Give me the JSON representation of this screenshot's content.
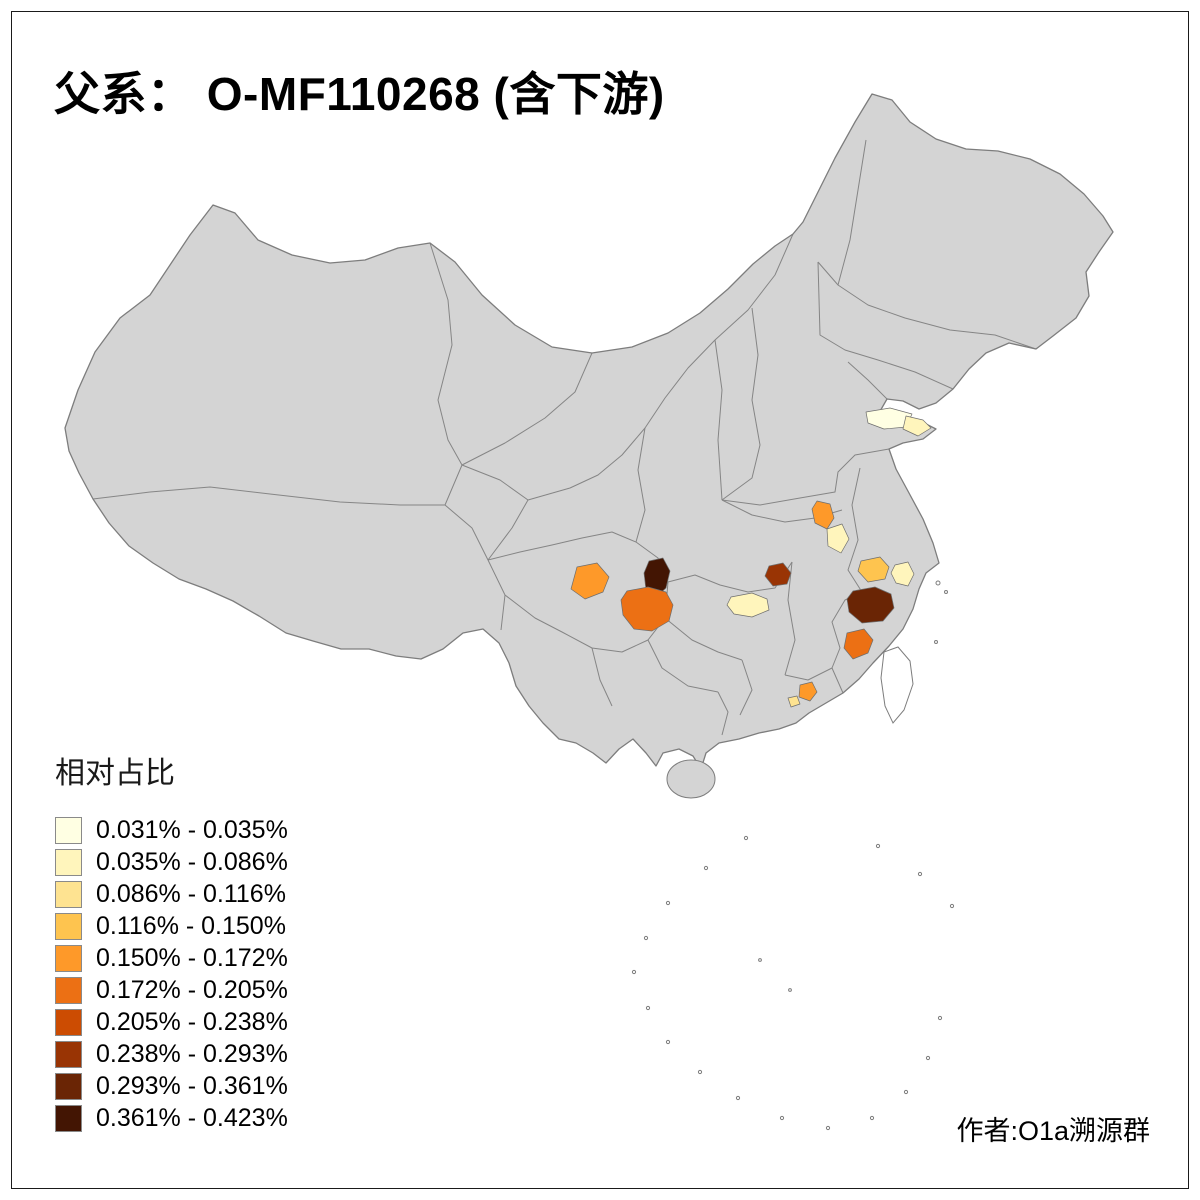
{
  "title": "父系： O-MF110268 (含下游)",
  "attribution": "作者:O1a溯源群",
  "legend": {
    "title": "相对占比",
    "items": [
      {
        "range": "0.031% - 0.035%",
        "color": "#FFFFE3"
      },
      {
        "range": "0.035% - 0.086%",
        "color": "#FFF5BC"
      },
      {
        "range": "0.086% - 0.116%",
        "color": "#FEE391"
      },
      {
        "range": "0.116% - 0.150%",
        "color": "#FEC44F"
      },
      {
        "range": "0.150% - 0.172%",
        "color": "#FE9929"
      },
      {
        "range": "0.172% - 0.205%",
        "color": "#EC7014"
      },
      {
        "range": "0.205% - 0.238%",
        "color": "#CC4C02"
      },
      {
        "range": "0.238% - 0.293%",
        "color": "#993404"
      },
      {
        "range": "0.293% - 0.361%",
        "color": "#6A2505"
      },
      {
        "range": "0.361% - 0.423%",
        "color": "#431503"
      }
    ]
  },
  "map": {
    "base_fill": "#D4D4D4",
    "border_color": "#7D7D7D",
    "no_data_fill": "#FFFFFF",
    "background": "#FFFFFF",
    "regions": [
      {
        "id": "shandong-peninsula-west",
        "class": 1
      },
      {
        "id": "shandong-peninsula-tip",
        "class": 2
      },
      {
        "id": "anhui-central",
        "class": 5
      },
      {
        "id": "anhui-south",
        "class": 2
      },
      {
        "id": "sichuan-central",
        "class": 5
      },
      {
        "id": "chongqing-west-dark",
        "class": 10
      },
      {
        "id": "guizhou-north-orange",
        "class": 6
      },
      {
        "id": "jiangxi-north",
        "class": 8
      },
      {
        "id": "hunan-central",
        "class": 2
      },
      {
        "id": "zhejiang-north",
        "class": 4
      },
      {
        "id": "zhejiang-coast",
        "class": 2
      },
      {
        "id": "zhejiang-southwest-dark",
        "class": 9
      },
      {
        "id": "fujian-coast",
        "class": 6
      },
      {
        "id": "guangdong-east",
        "class": 5
      },
      {
        "id": "guangdong-east-small",
        "class": 3
      }
    ]
  }
}
